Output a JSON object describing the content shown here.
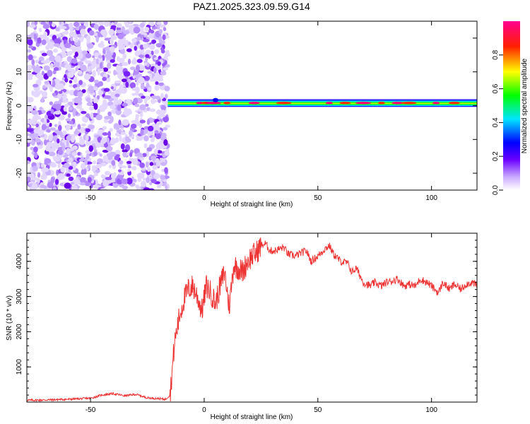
{
  "figure_title": "PAZ1.2025.323.09.59.G14",
  "chart_data": [
    {
      "type": "heatmap",
      "title": "PAZ1.2025.323.09.59.G14",
      "xlabel": "Height of straight line (km)",
      "ylabel": "Frequency (Hz)",
      "xlim": [
        -78,
        120
      ],
      "ylim": [
        -25,
        25
      ],
      "xticks": [
        -50,
        0,
        50,
        100
      ],
      "xtick_labels": [
        "-50",
        "0",
        "50",
        "100"
      ],
      "yticks": [
        -20,
        -10,
        0,
        10,
        20
      ],
      "ytick_labels": [
        "-20",
        "-10",
        "0",
        "10",
        "20"
      ],
      "noise_region_x": [
        -78,
        -16
      ],
      "signal_band": {
        "x_start": -16,
        "x_end": 120,
        "center_freq": 0.8,
        "width_hz": 2.5,
        "peak_amplitude": 0.9
      },
      "colorbar": {
        "label": "Normalized spectral amplitude",
        "range": [
          0,
          1
        ],
        "ticks": [
          0.0,
          0.2,
          0.4,
          0.6,
          0.8
        ],
        "tick_labels": [
          "0.0",
          "0.2",
          "0.4",
          "0.6",
          "0.8"
        ],
        "colors": [
          "#ffffff",
          "#a070ff",
          "#0000ff",
          "#00e5ff",
          "#00ff00",
          "#ffff00",
          "#ff0000",
          "#ff00a0"
        ]
      }
    },
    {
      "type": "line",
      "xlabel": "Height of straight line (km)",
      "ylabel": "SNR (10 * v/v)",
      "xlim": [
        -78,
        120
      ],
      "ylim": [
        0,
        4800
      ],
      "xticks": [
        -50,
        0,
        50,
        100
      ],
      "xtick_labels": [
        "-50",
        "0",
        "50",
        "100"
      ],
      "yticks": [
        1000,
        2000,
        3000,
        4000
      ],
      "ytick_labels": [
        "1000",
        "2000",
        "3000",
        "4000"
      ],
      "series": [
        {
          "name": "SNR",
          "color": "#ee3333",
          "x": [
            -78,
            -70,
            -60,
            -50,
            -45,
            -40,
            -35,
            -30,
            -25,
            -20,
            -17,
            -15,
            -13,
            -11,
            -9,
            -7,
            -5,
            -3,
            -1,
            1,
            3,
            5,
            7,
            9,
            11,
            13,
            15,
            17,
            19,
            21,
            23,
            25,
            27,
            29,
            31,
            33,
            35,
            37,
            40,
            43,
            45,
            47,
            50,
            53,
            55,
            57,
            60,
            63,
            65,
            67,
            70,
            73,
            75,
            78,
            80,
            83,
            85,
            88,
            90,
            93,
            95,
            98,
            100,
            103,
            105,
            108,
            110,
            113,
            115,
            118,
            120
          ],
          "y": [
            50,
            60,
            80,
            110,
            200,
            240,
            180,
            220,
            120,
            100,
            80,
            200,
            1700,
            2400,
            2900,
            3200,
            3300,
            3000,
            2600,
            3300,
            3100,
            2800,
            3300,
            3700,
            2700,
            3900,
            3800,
            3700,
            4000,
            4150,
            4250,
            4450,
            4500,
            4300,
            4300,
            4350,
            4400,
            4200,
            4150,
            4250,
            4300,
            4000,
            4150,
            4350,
            4450,
            4200,
            4000,
            3950,
            3700,
            3800,
            3400,
            3300,
            3400,
            3300,
            3400,
            3450,
            3500,
            3300,
            3350,
            3300,
            3500,
            3400,
            3300,
            3100,
            3400,
            3200,
            3350,
            3200,
            3350,
            3400,
            3300
          ]
        }
      ]
    }
  ]
}
